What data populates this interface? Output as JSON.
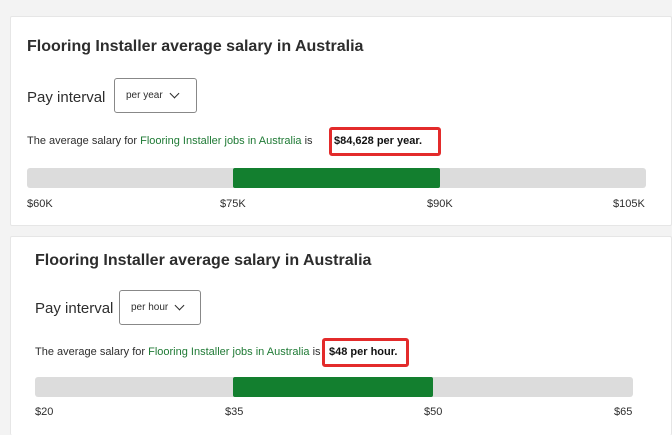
{
  "cards": [
    {
      "title": "Flooring Installer average salary in Australia",
      "pay_interval_label": "Pay interval",
      "pay_interval_value": "per year",
      "sentence_prefix": "The average salary for ",
      "sentence_link": "Flooring Installer jobs in Australia",
      "sentence_mid": " is ",
      "highlight_amount": "$84,628 per year.",
      "range_fill_fraction": {
        "start": 0.333,
        "end": 0.667
      },
      "ticks": [
        "$60K",
        "$75K",
        "$90K",
        "$105K"
      ]
    },
    {
      "title": "Flooring Installer average salary in Australia",
      "pay_interval_label": "Pay interval",
      "pay_interval_value": "per hour",
      "sentence_prefix": "The average salary for ",
      "sentence_link": "Flooring Installer jobs in Australia",
      "sentence_mid": " is ",
      "highlight_amount": "$48 per hour.",
      "range_fill_fraction": {
        "start": 0.333,
        "end": 0.667
      },
      "ticks": [
        "$20",
        "$35",
        "$50",
        "$65"
      ]
    }
  ],
  "colors": {
    "link": "#1f7a35",
    "range_fill": "#137f2f",
    "range_track": "#dcdcdc",
    "highlight_border": "#e32b2b"
  },
  "icons": {
    "dropdown": "chevron-down-icon"
  }
}
